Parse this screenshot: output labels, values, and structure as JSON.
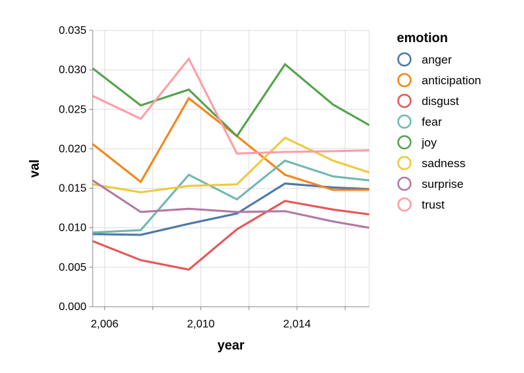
{
  "chart_data": {
    "type": "line",
    "xlabel": "year",
    "ylabel": "val",
    "xlim": [
      2005.5,
      2017.0
    ],
    "ylim": [
      0,
      0.035
    ],
    "x_ticks": [
      2006,
      2010,
      2014
    ],
    "x_tick_labels": [
      "2,006",
      "2,010",
      "2,014"
    ],
    "x_grid": [
      2006,
      2008,
      2010,
      2012,
      2014,
      2016
    ],
    "y_ticks": [
      0,
      0.005,
      0.01,
      0.015,
      0.02,
      0.025,
      0.03,
      0.035
    ],
    "y_tick_labels": [
      "0.000",
      "0.005",
      "0.010",
      "0.015",
      "0.020",
      "0.025",
      "0.030",
      "0.035"
    ],
    "grid": true,
    "legend": {
      "title": "emotion",
      "placement": "right"
    },
    "x": [
      2005.5,
      2007.5,
      2009.5,
      2011.5,
      2013.5,
      2015.5,
      2017.0
    ],
    "series": [
      {
        "name": "anger",
        "color": "#4c78a8",
        "values": [
          0.0092,
          0.0091,
          0.0105,
          0.0118,
          0.0156,
          0.0151,
          0.0149
        ]
      },
      {
        "name": "anticipation",
        "color": "#f58518",
        "values": [
          0.0206,
          0.0158,
          0.0264,
          0.0216,
          0.0167,
          0.0148,
          0.0148
        ]
      },
      {
        "name": "disgust",
        "color": "#e45756",
        "values": [
          0.0083,
          0.0059,
          0.0047,
          0.0098,
          0.0134,
          0.0123,
          0.0117
        ]
      },
      {
        "name": "fear",
        "color": "#72b7b2",
        "values": [
          0.0094,
          0.0097,
          0.0167,
          0.0136,
          0.0185,
          0.0165,
          0.016
        ]
      },
      {
        "name": "joy",
        "color": "#54a24b",
        "values": [
          0.0302,
          0.0255,
          0.0275,
          0.0216,
          0.0307,
          0.0256,
          0.023
        ]
      },
      {
        "name": "sadness",
        "color": "#eeca3b",
        "values": [
          0.0155,
          0.0145,
          0.0153,
          0.0155,
          0.0214,
          0.0185,
          0.017
        ]
      },
      {
        "name": "surprise",
        "color": "#b279a2",
        "values": [
          0.016,
          0.012,
          0.0124,
          0.012,
          0.0121,
          0.0108,
          0.01
        ]
      },
      {
        "name": "trust",
        "color": "#ff9da6",
        "values": [
          0.0267,
          0.0238,
          0.0314,
          0.0194,
          0.0196,
          0.0197,
          0.0198
        ]
      }
    ]
  }
}
